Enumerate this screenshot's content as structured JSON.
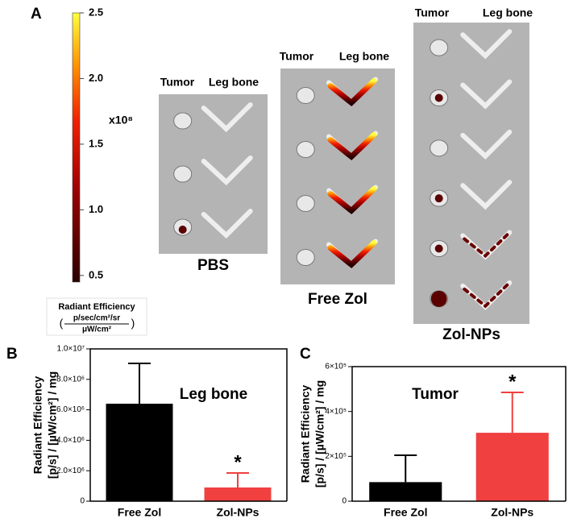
{
  "panel_a": {
    "label": "A",
    "colorbar": {
      "lim": [
        0.45,
        2.5
      ],
      "ticks": [
        0.5,
        {
          "value": 1.0,
          "label": "1.0"
        },
        1.5,
        {
          "value": 2.0,
          "label": "2.0"
        },
        2.5
      ],
      "multiplier": "x10⁸",
      "unit_title": "Radiant Efficiency",
      "unit_numerator": "p/sec/cm²/sr",
      "unit_denominator": "μW/cm²"
    },
    "groups": [
      {
        "name": "PBS",
        "headers": [
          "Tumor",
          "Leg bone"
        ]
      },
      {
        "name": "Free Zol",
        "headers": [
          "Tumor",
          "Leg bone"
        ]
      },
      {
        "name": "Zol-NPs",
        "headers": [
          "Tumor",
          "Leg bone"
        ]
      }
    ]
  },
  "chart_data": [
    {
      "type": "bar",
      "panel": "B",
      "title": "Leg bone",
      "ylabel": [
        "Radiant Efficiency",
        "[p/s] / [µW/cm²] / mg"
      ],
      "categories": [
        "Free Zol",
        "Zol-NPs"
      ],
      "values": [
        6400000,
        900000
      ],
      "errors": [
        2650000,
        950000
      ],
      "colors": [
        "#000000",
        "#f04040"
      ],
      "annotations": [
        null,
        "*"
      ],
      "ylim": [
        0,
        10000000
      ],
      "yticks": [
        0,
        {
          "value": 2000000,
          "label": "2.0×10⁶"
        },
        {
          "value": 4000000,
          "label": "4.0×10⁶"
        },
        {
          "value": 6000000,
          "label": "6.0×10⁶"
        },
        {
          "value": 8000000,
          "label": "8.0×10⁶"
        },
        {
          "value": 10000000,
          "label": "1.0×10⁷"
        }
      ]
    },
    {
      "type": "bar",
      "panel": "C",
      "title": "Tumor",
      "ylabel": [
        "Radiant Efficiency",
        "[p/s] / [µW/cm²] / mg"
      ],
      "categories": [
        "Free Zol",
        "Zol-NPs"
      ],
      "values": [
        85000,
        305000
      ],
      "errors": [
        120000,
        180000
      ],
      "colors": [
        "#000000",
        "#f04040"
      ],
      "annotations": [
        null,
        "*"
      ],
      "ylim": [
        0,
        600000
      ],
      "yticks": [
        0,
        {
          "value": 200000,
          "label": "2×10⁵"
        },
        {
          "value": 400000,
          "label": "4×10⁵"
        },
        {
          "value": 600000,
          "label": "6×10⁵"
        }
      ]
    }
  ]
}
